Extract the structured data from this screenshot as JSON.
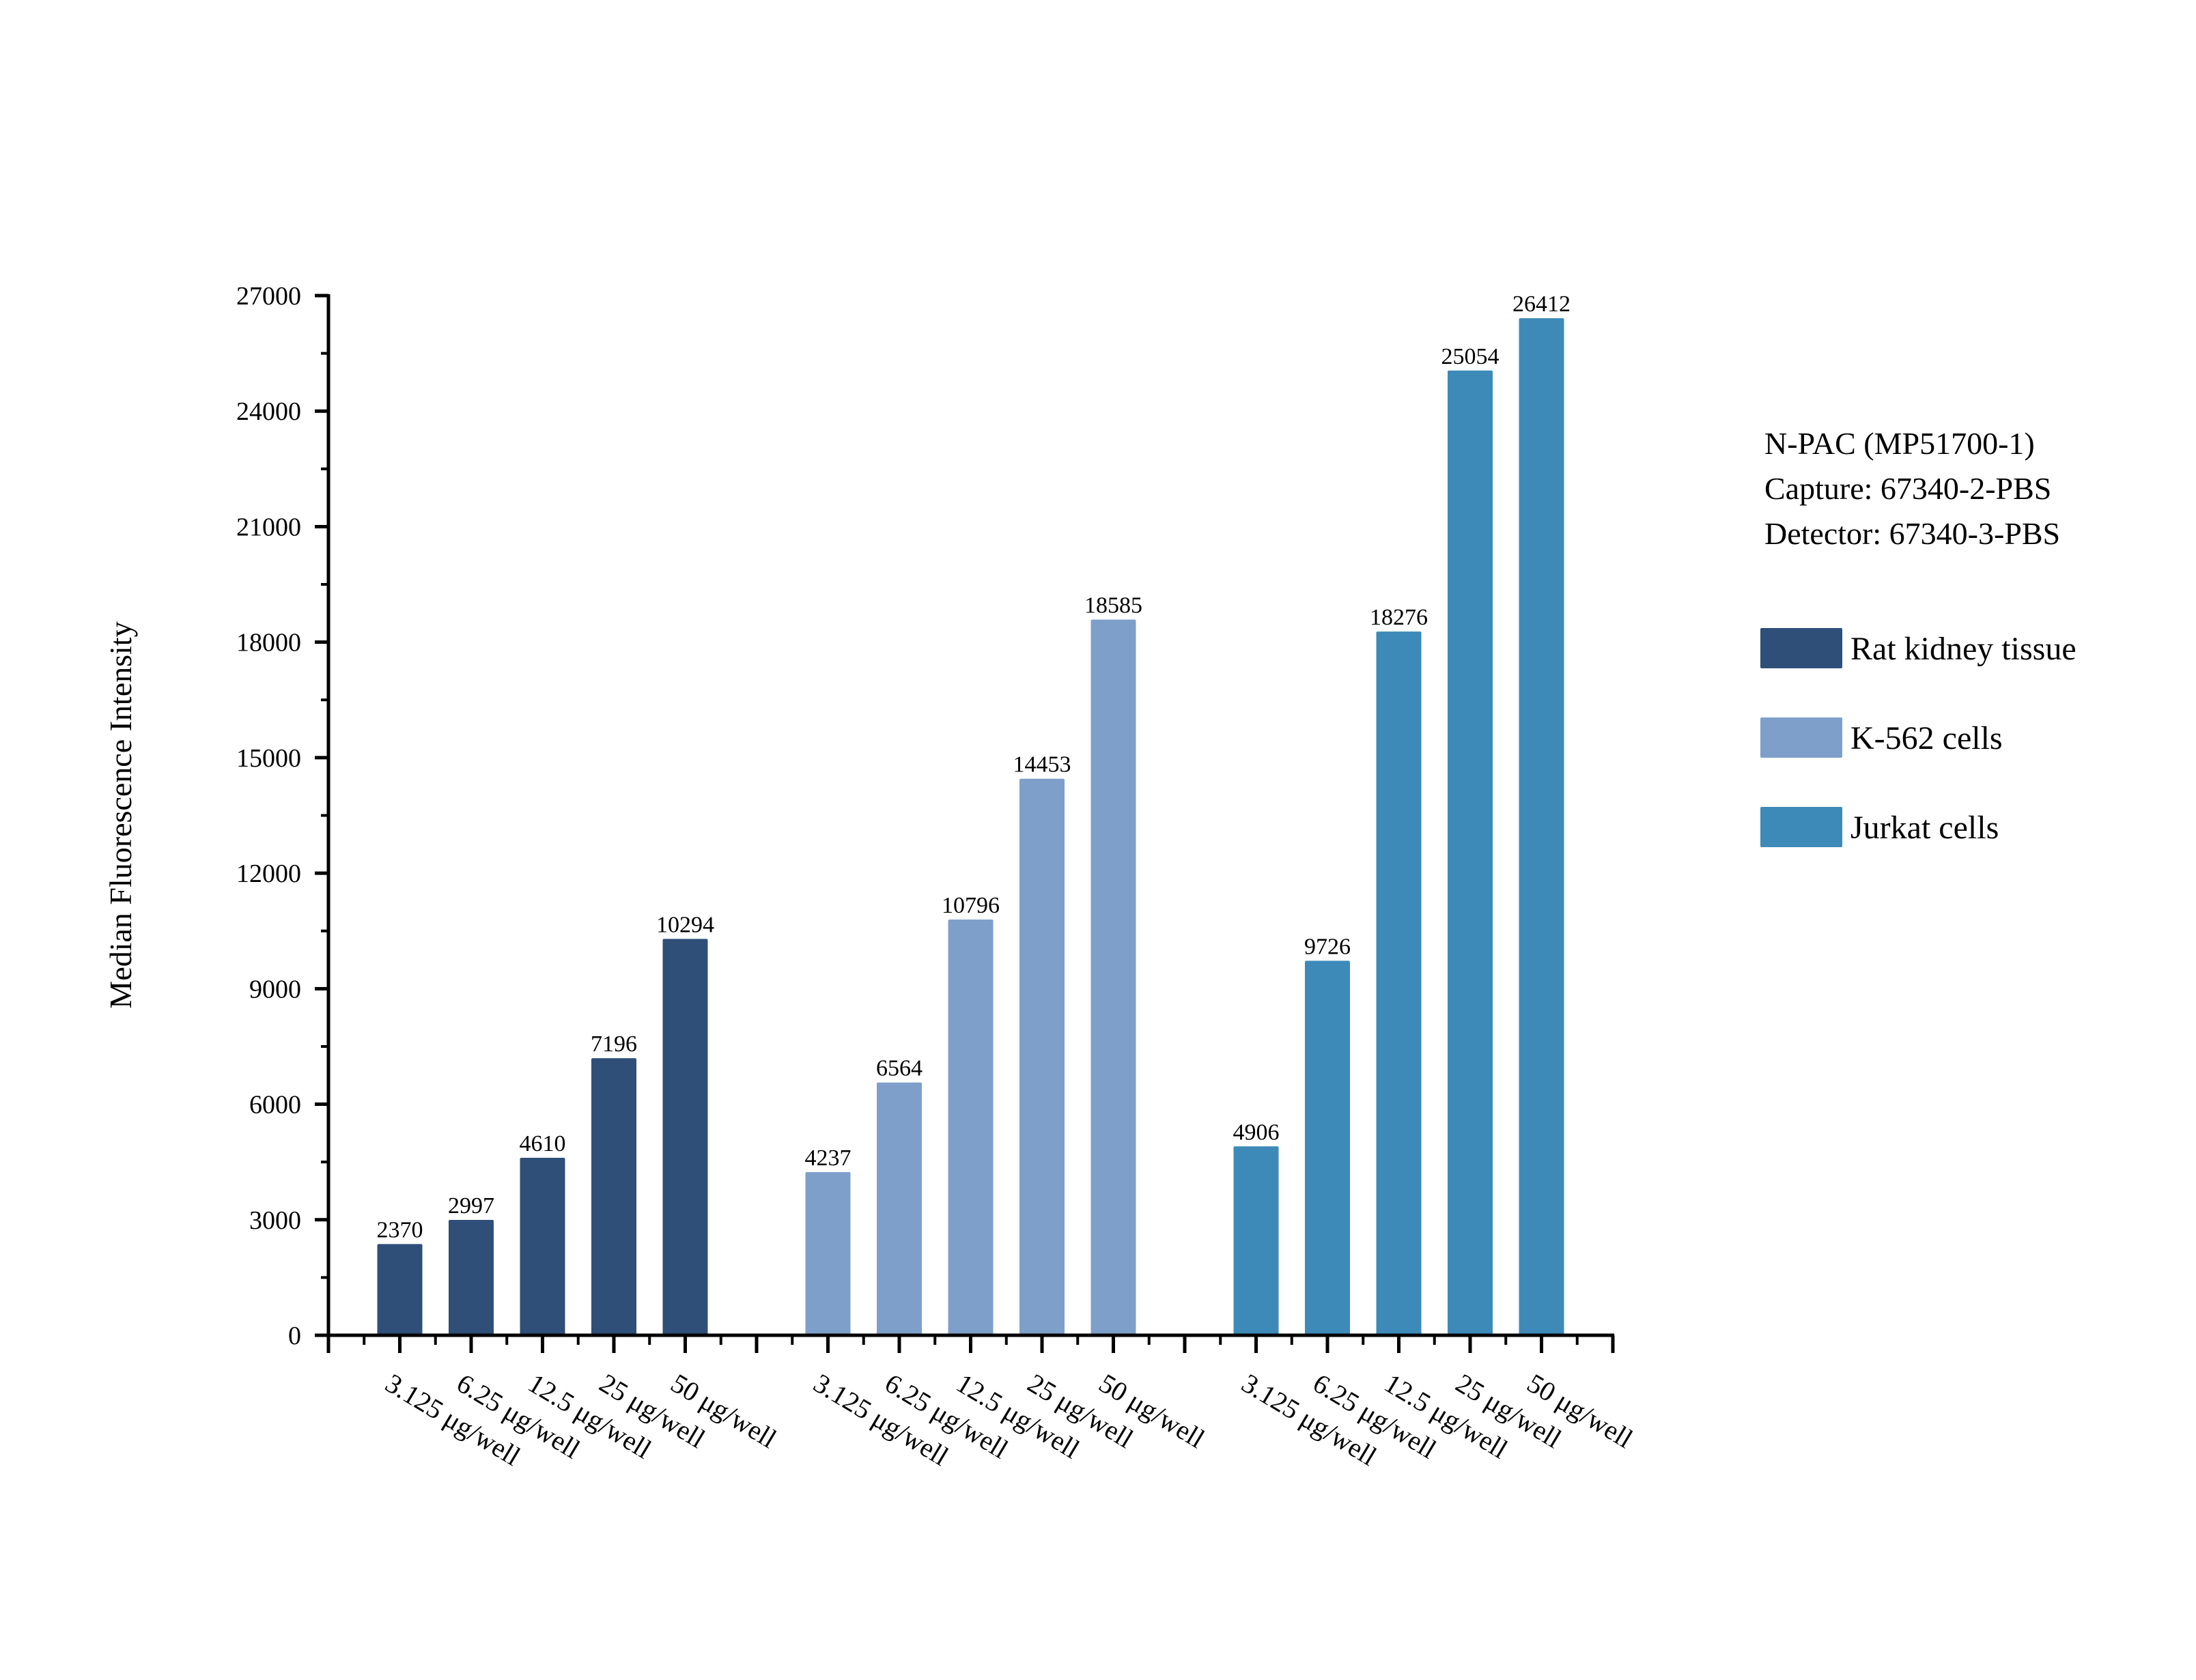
{
  "chart_data": {
    "type": "bar",
    "ylabel": "Median Fluorescence Intensity",
    "xlabel": "",
    "ylim": [
      0,
      27000
    ],
    "yticks": [
      0,
      3000,
      6000,
      9000,
      12000,
      15000,
      18000,
      21000,
      24000,
      27000
    ],
    "grid": false,
    "legend_placement": "right",
    "annotation": [
      "N-PAC (MP51700-1)",
      "Capture: 67340-2-PBS",
      "Detector: 67340-3-PBS"
    ],
    "categories": [
      "3.125 μg/well",
      "6.25 μg/well",
      "12.5 μg/well",
      "25 μg/well",
      "50 μg/well"
    ],
    "series": [
      {
        "name": "Rat kidney tissue",
        "color": "#2f4f78",
        "values": [
          2370,
          2997,
          4610,
          7196,
          10294
        ]
      },
      {
        "name": "K-562 cells",
        "color": "#7f9fcb",
        "values": [
          4237,
          6564,
          10796,
          14453,
          18585
        ]
      },
      {
        "name": "Jurkat cells",
        "color": "#3d8ab8",
        "values": [
          4906,
          9726,
          18276,
          25054,
          26412
        ]
      }
    ]
  }
}
